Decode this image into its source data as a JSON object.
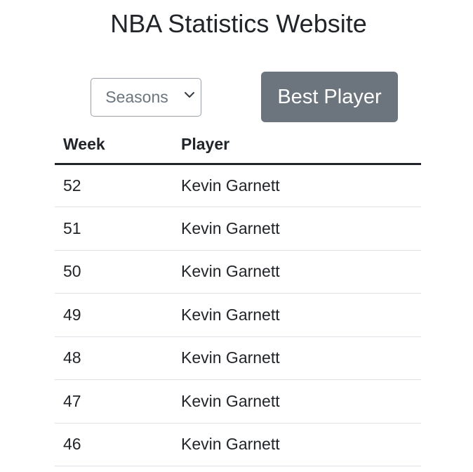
{
  "page": {
    "title": "NBA Statistics Website"
  },
  "controls": {
    "season_select": {
      "selected": "Seasons",
      "options": [
        "Seasons"
      ]
    },
    "best_player_button": "Best Player"
  },
  "table": {
    "headers": [
      "Week",
      "Player"
    ],
    "rows": [
      {
        "week": "52",
        "player": "Kevin Garnett"
      },
      {
        "week": "51",
        "player": "Kevin Garnett"
      },
      {
        "week": "50",
        "player": "Kevin Garnett"
      },
      {
        "week": "49",
        "player": "Kevin Garnett"
      },
      {
        "week": "48",
        "player": "Kevin Garnett"
      },
      {
        "week": "47",
        "player": "Kevin Garnett"
      },
      {
        "week": "46",
        "player": "Kevin Garnett"
      }
    ]
  },
  "colors": {
    "button_bg": "#6c757d",
    "text": "#212529",
    "muted": "#6c757d",
    "row_border": "#dee2e6"
  }
}
